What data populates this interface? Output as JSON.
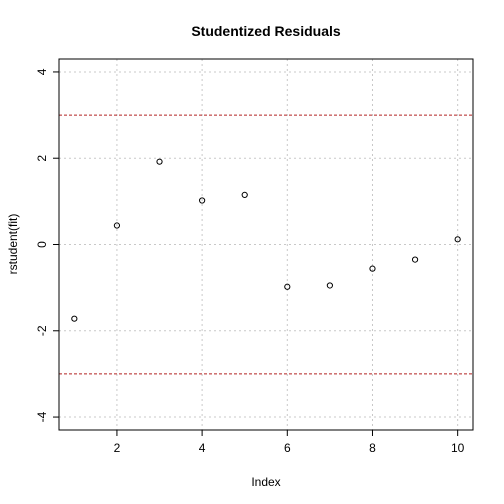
{
  "chart_data": {
    "type": "scatter",
    "title": "Studentized Residuals",
    "xlabel": "Index",
    "ylabel": "rstudent(fit)",
    "xlim": [
      0.64,
      10.36
    ],
    "ylim": [
      -4.3,
      4.3
    ],
    "x_ticks": [
      2,
      4,
      6,
      8,
      10
    ],
    "y_ticks": [
      -4,
      -2,
      0,
      2,
      4
    ],
    "x_tick_labels": [
      "2",
      "4",
      "6",
      "8",
      "10"
    ],
    "y_tick_labels": [
      "-4",
      "-2",
      "0",
      "2",
      "4"
    ],
    "grid_x": [
      2,
      4,
      6,
      8,
      10
    ],
    "grid_y": [
      -4,
      -2,
      0,
      2,
      4
    ],
    "grid": true,
    "x": [
      1,
      2,
      3,
      4,
      5,
      6,
      7,
      8,
      9,
      10
    ],
    "y": [
      -1.72,
      0.44,
      1.92,
      1.02,
      1.15,
      -0.98,
      -0.95,
      -0.56,
      -0.35,
      0.12
    ],
    "reference_lines": [
      {
        "y": 3,
        "color": "#b22222"
      },
      {
        "y": -3,
        "color": "#b22222"
      }
    ]
  }
}
